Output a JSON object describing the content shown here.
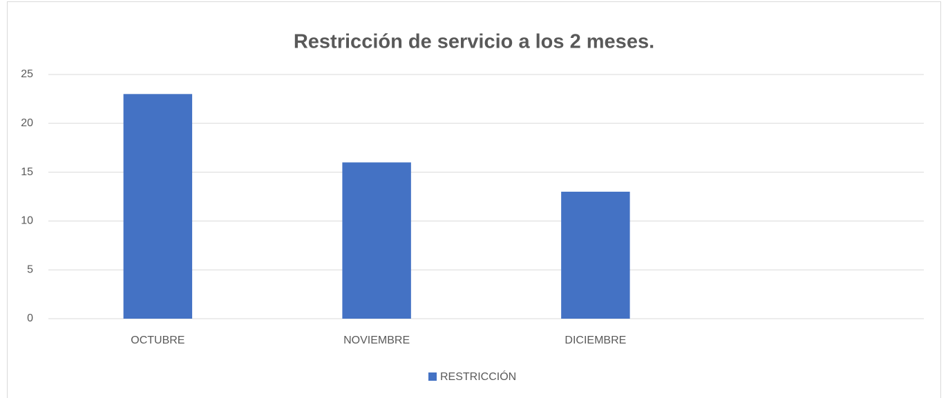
{
  "chart_data": {
    "type": "bar",
    "title": "Restricción de servicio a los 2 meses.",
    "categories": [
      "OCTUBRE",
      "NOVIEMBRE",
      "DICIEMBRE",
      null
    ],
    "series": [
      {
        "name": "RESTRICCIÓN",
        "color": "#4472c4",
        "values": [
          23,
          16,
          13,
          null
        ]
      }
    ],
    "ylim": [
      0,
      25
    ],
    "yticks": [
      0,
      5,
      10,
      15,
      20,
      25
    ],
    "grid": true,
    "legend": "bottom"
  }
}
